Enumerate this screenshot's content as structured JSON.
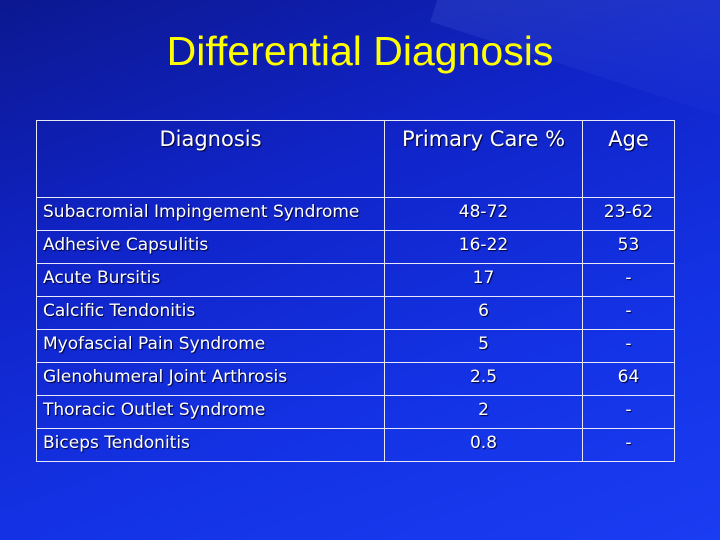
{
  "title": "Differential Diagnosis",
  "table": {
    "header": [
      "Diagnosis",
      "Primary Care %",
      "Age"
    ],
    "rows": [
      [
        "Subacromial Impingement Syndrome",
        "48-72",
        "23-62"
      ],
      [
        "Adhesive Capsulitis",
        "16-22",
        "53"
      ],
      [
        "Acute Bursitis",
        "17",
        "-"
      ],
      [
        "Calcific Tendonitis",
        "6",
        "-"
      ],
      [
        "Myofascial Pain Syndrome",
        "5",
        "-"
      ],
      [
        "Glenohumeral Joint Arthrosis",
        "2.5",
        "64"
      ],
      [
        "Thoracic Outlet Syndrome",
        "2",
        "-"
      ],
      [
        "Biceps Tendonitis",
        "0.8",
        "-"
      ]
    ]
  }
}
